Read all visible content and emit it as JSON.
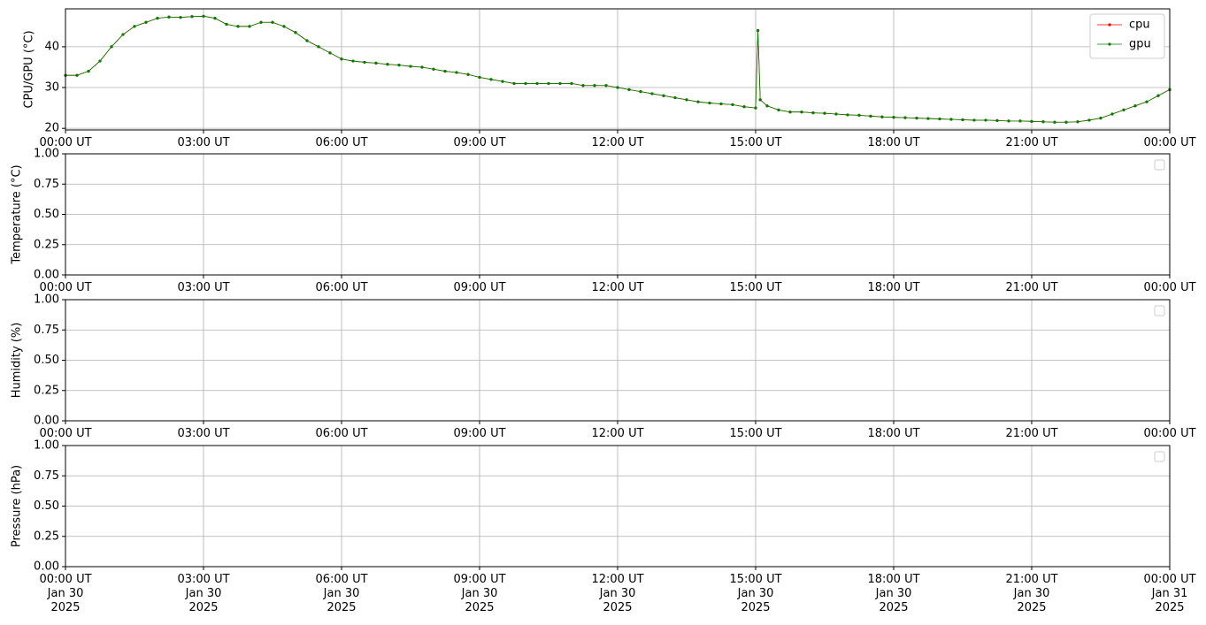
{
  "chart_data": [
    {
      "type": "line",
      "ylabel": "CPU/GPU (°C)",
      "x": [
        0,
        0.25,
        0.5,
        0.75,
        1,
        1.25,
        1.5,
        1.75,
        2,
        2.25,
        2.5,
        2.75,
        3,
        3.25,
        3.5,
        3.75,
        4,
        4.25,
        4.5,
        4.75,
        5,
        5.25,
        5.5,
        5.75,
        6,
        6.25,
        6.5,
        6.75,
        7,
        7.25,
        7.5,
        7.75,
        8,
        8.25,
        8.5,
        8.75,
        9,
        9.25,
        9.5,
        9.75,
        10,
        10.25,
        10.5,
        10.75,
        11,
        11.25,
        11.5,
        11.75,
        12,
        12.25,
        12.5,
        12.75,
        13,
        13.25,
        13.5,
        13.75,
        14,
        14.25,
        14.5,
        14.75,
        15,
        15.05,
        15.1,
        15.25,
        15.5,
        15.75,
        16,
        16.25,
        16.5,
        16.75,
        17,
        17.25,
        17.5,
        17.75,
        18,
        18.25,
        18.5,
        18.75,
        19,
        19.25,
        19.5,
        19.75,
        20,
        20.25,
        20.5,
        20.75,
        21,
        21.25,
        21.5,
        21.75,
        22,
        22.25,
        22.5,
        22.75,
        23,
        23.25,
        23.5,
        23.75,
        24
      ],
      "series": [
        {
          "name": "cpu",
          "color": "#ff0000",
          "values": [
            33,
            33,
            34,
            36.5,
            40,
            43,
            45,
            46,
            47,
            47.3,
            47.2,
            47.4,
            47.5,
            47,
            45.5,
            45,
            45,
            46,
            46,
            45,
            43.5,
            41.5,
            40,
            38.5,
            37,
            36.5,
            36.2,
            36,
            35.7,
            35.5,
            35.2,
            35,
            34.5,
            34,
            33.7,
            33.2,
            32.5,
            32,
            31.5,
            31,
            31,
            31,
            31,
            31,
            31,
            30.5,
            30.5,
            30.5,
            30,
            29.5,
            29,
            28.5,
            28,
            27.5,
            27,
            26.5,
            26.2,
            26,
            25.8,
            25.3,
            25,
            44,
            27,
            25.5,
            24.5,
            24,
            24,
            23.8,
            23.7,
            23.5,
            23.3,
            23.2,
            23,
            22.8,
            22.7,
            22.6,
            22.5,
            22.4,
            22.3,
            22.2,
            22.1,
            22,
            22,
            21.9,
            21.8,
            21.8,
            21.7,
            21.6,
            21.5,
            21.5,
            21.6,
            22,
            22.5,
            23.5,
            24.5,
            25.5,
            26.5,
            28,
            29.5
          ]
        },
        {
          "name": "gpu",
          "color": "#008000",
          "values": [
            33,
            33,
            34,
            36.5,
            40,
            43,
            45,
            46,
            47,
            47.3,
            47.2,
            47.4,
            47.5,
            47,
            45.5,
            45,
            45,
            46,
            46,
            45,
            43.5,
            41.5,
            40,
            38.5,
            37,
            36.5,
            36.2,
            36,
            35.7,
            35.5,
            35.2,
            35,
            34.5,
            34,
            33.7,
            33.2,
            32.5,
            32,
            31.5,
            31,
            31,
            31,
            31,
            31,
            31,
            30.5,
            30.5,
            30.5,
            30,
            29.5,
            29,
            28.5,
            28,
            27.5,
            27,
            26.5,
            26.2,
            26,
            25.8,
            25.3,
            25,
            44,
            27,
            25.5,
            24.5,
            24,
            24,
            23.8,
            23.7,
            23.5,
            23.3,
            23.2,
            23,
            22.8,
            22.7,
            22.6,
            22.5,
            22.4,
            22.3,
            22.2,
            22.1,
            22,
            22,
            21.9,
            21.8,
            21.8,
            21.7,
            21.6,
            21.5,
            21.5,
            21.6,
            22,
            22.5,
            23.5,
            24.5,
            25.5,
            26.5,
            28,
            29.5
          ]
        }
      ],
      "xlim": [
        0,
        24
      ],
      "xticks": [
        {
          "value": 0,
          "label": "00:00 UT"
        },
        {
          "value": 3,
          "label": "03:00 UT"
        },
        {
          "value": 6,
          "label": "06:00 UT"
        },
        {
          "value": 9,
          "label": "09:00 UT"
        },
        {
          "value": 12,
          "label": "12:00 UT"
        },
        {
          "value": 15,
          "label": "15:00 UT"
        },
        {
          "value": 18,
          "label": "18:00 UT"
        },
        {
          "value": 21,
          "label": "21:00 UT"
        },
        {
          "value": 24,
          "label": "00:00 UT"
        }
      ],
      "ylim": [
        19.6,
        49.3
      ],
      "yticks": [
        20,
        30,
        40
      ],
      "grid": true,
      "legend": "upper right"
    },
    {
      "type": "line",
      "ylabel": "Temperature (°C)",
      "series": [],
      "xlim": [
        0,
        24
      ],
      "xticks": [
        {
          "value": 0,
          "label": "00:00 UT"
        },
        {
          "value": 3,
          "label": "03:00 UT"
        },
        {
          "value": 6,
          "label": "06:00 UT"
        },
        {
          "value": 9,
          "label": "09:00 UT"
        },
        {
          "value": 12,
          "label": "12:00 UT"
        },
        {
          "value": 15,
          "label": "15:00 UT"
        },
        {
          "value": 18,
          "label": "18:00 UT"
        },
        {
          "value": 21,
          "label": "21:00 UT"
        },
        {
          "value": 24,
          "label": "00:00 UT"
        }
      ],
      "ylim": [
        0,
        1
      ],
      "yticks": [
        {
          "value": 0,
          "label": "0.00"
        },
        {
          "value": 0.25,
          "label": "0.25"
        },
        {
          "value": 0.5,
          "label": "0.50"
        },
        {
          "value": 0.75,
          "label": "0.75"
        },
        {
          "value": 1,
          "label": "1.00"
        }
      ],
      "grid": true,
      "legend": "upper right"
    },
    {
      "type": "line",
      "ylabel": "Humidity (%)",
      "series": [],
      "xlim": [
        0,
        24
      ],
      "xticks": [
        {
          "value": 0,
          "label": "00:00 UT"
        },
        {
          "value": 3,
          "label": "03:00 UT"
        },
        {
          "value": 6,
          "label": "06:00 UT"
        },
        {
          "value": 9,
          "label": "09:00 UT"
        },
        {
          "value": 12,
          "label": "12:00 UT"
        },
        {
          "value": 15,
          "label": "15:00 UT"
        },
        {
          "value": 18,
          "label": "18:00 UT"
        },
        {
          "value": 21,
          "label": "21:00 UT"
        },
        {
          "value": 24,
          "label": "00:00 UT"
        }
      ],
      "ylim": [
        0,
        1
      ],
      "yticks": [
        {
          "value": 0,
          "label": "0.00"
        },
        {
          "value": 0.25,
          "label": "0.25"
        },
        {
          "value": 0.5,
          "label": "0.50"
        },
        {
          "value": 0.75,
          "label": "0.75"
        },
        {
          "value": 1,
          "label": "1.00"
        }
      ],
      "grid": true,
      "legend": "upper right"
    },
    {
      "type": "line",
      "ylabel": "Pressure (hPa)",
      "series": [],
      "xlim": [
        0,
        24
      ],
      "xticks": [
        {
          "value": 0,
          "label": "00:00 UT\nJan 30\n2025"
        },
        {
          "value": 3,
          "label": "03:00 UT\nJan 30\n2025"
        },
        {
          "value": 6,
          "label": "06:00 UT\nJan 30\n2025"
        },
        {
          "value": 9,
          "label": "09:00 UT\nJan 30\n2025"
        },
        {
          "value": 12,
          "label": "12:00 UT\nJan 30\n2025"
        },
        {
          "value": 15,
          "label": "15:00 UT\nJan 30\n2025"
        },
        {
          "value": 18,
          "label": "18:00 UT\nJan 30\n2025"
        },
        {
          "value": 21,
          "label": "21:00 UT\nJan 30\n2025"
        },
        {
          "value": 24,
          "label": "00:00 UT\nJan 31\n2025"
        }
      ],
      "ylim": [
        0,
        1
      ],
      "yticks": [
        {
          "value": 0,
          "label": "0.00"
        },
        {
          "value": 0.25,
          "label": "0.25"
        },
        {
          "value": 0.5,
          "label": "0.50"
        },
        {
          "value": 0.75,
          "label": "0.75"
        },
        {
          "value": 1,
          "label": "1.00"
        }
      ],
      "grid": true,
      "legend": "upper right"
    }
  ]
}
